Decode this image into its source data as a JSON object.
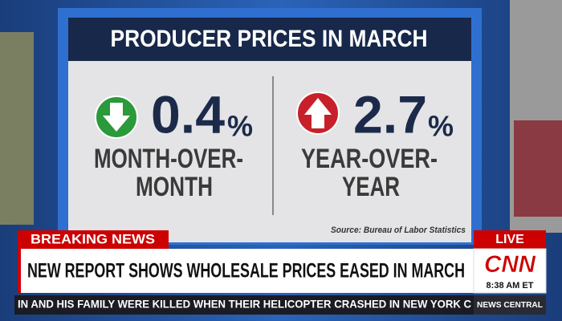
{
  "graphic": {
    "title": "PRODUCER PRICES IN MARCH",
    "left": {
      "value": "0.4",
      "unit": "%",
      "label_lines": [
        "MONTH-OVER-",
        "MONTH"
      ]
    },
    "right": {
      "value": "2.7",
      "unit": "%",
      "label_lines": [
        "YEAR-OVER-",
        "YEAR"
      ]
    },
    "source": "Source: Bureau of Labor Statistics"
  },
  "lower_third": {
    "tag": "BREAKING NEWS",
    "headline": "NEW REPORT SHOWS WHOLESALE PRICES EASED IN MARCH",
    "live": "LIVE",
    "network": "CNN",
    "time": "8:38 AM ET",
    "ticker": "IN AND HIS FAMILY WERE KILLED WHEN THEIR HELICOPTER CRASHED IN NEW YORK C",
    "show": "NEWS CENTRAL"
  }
}
